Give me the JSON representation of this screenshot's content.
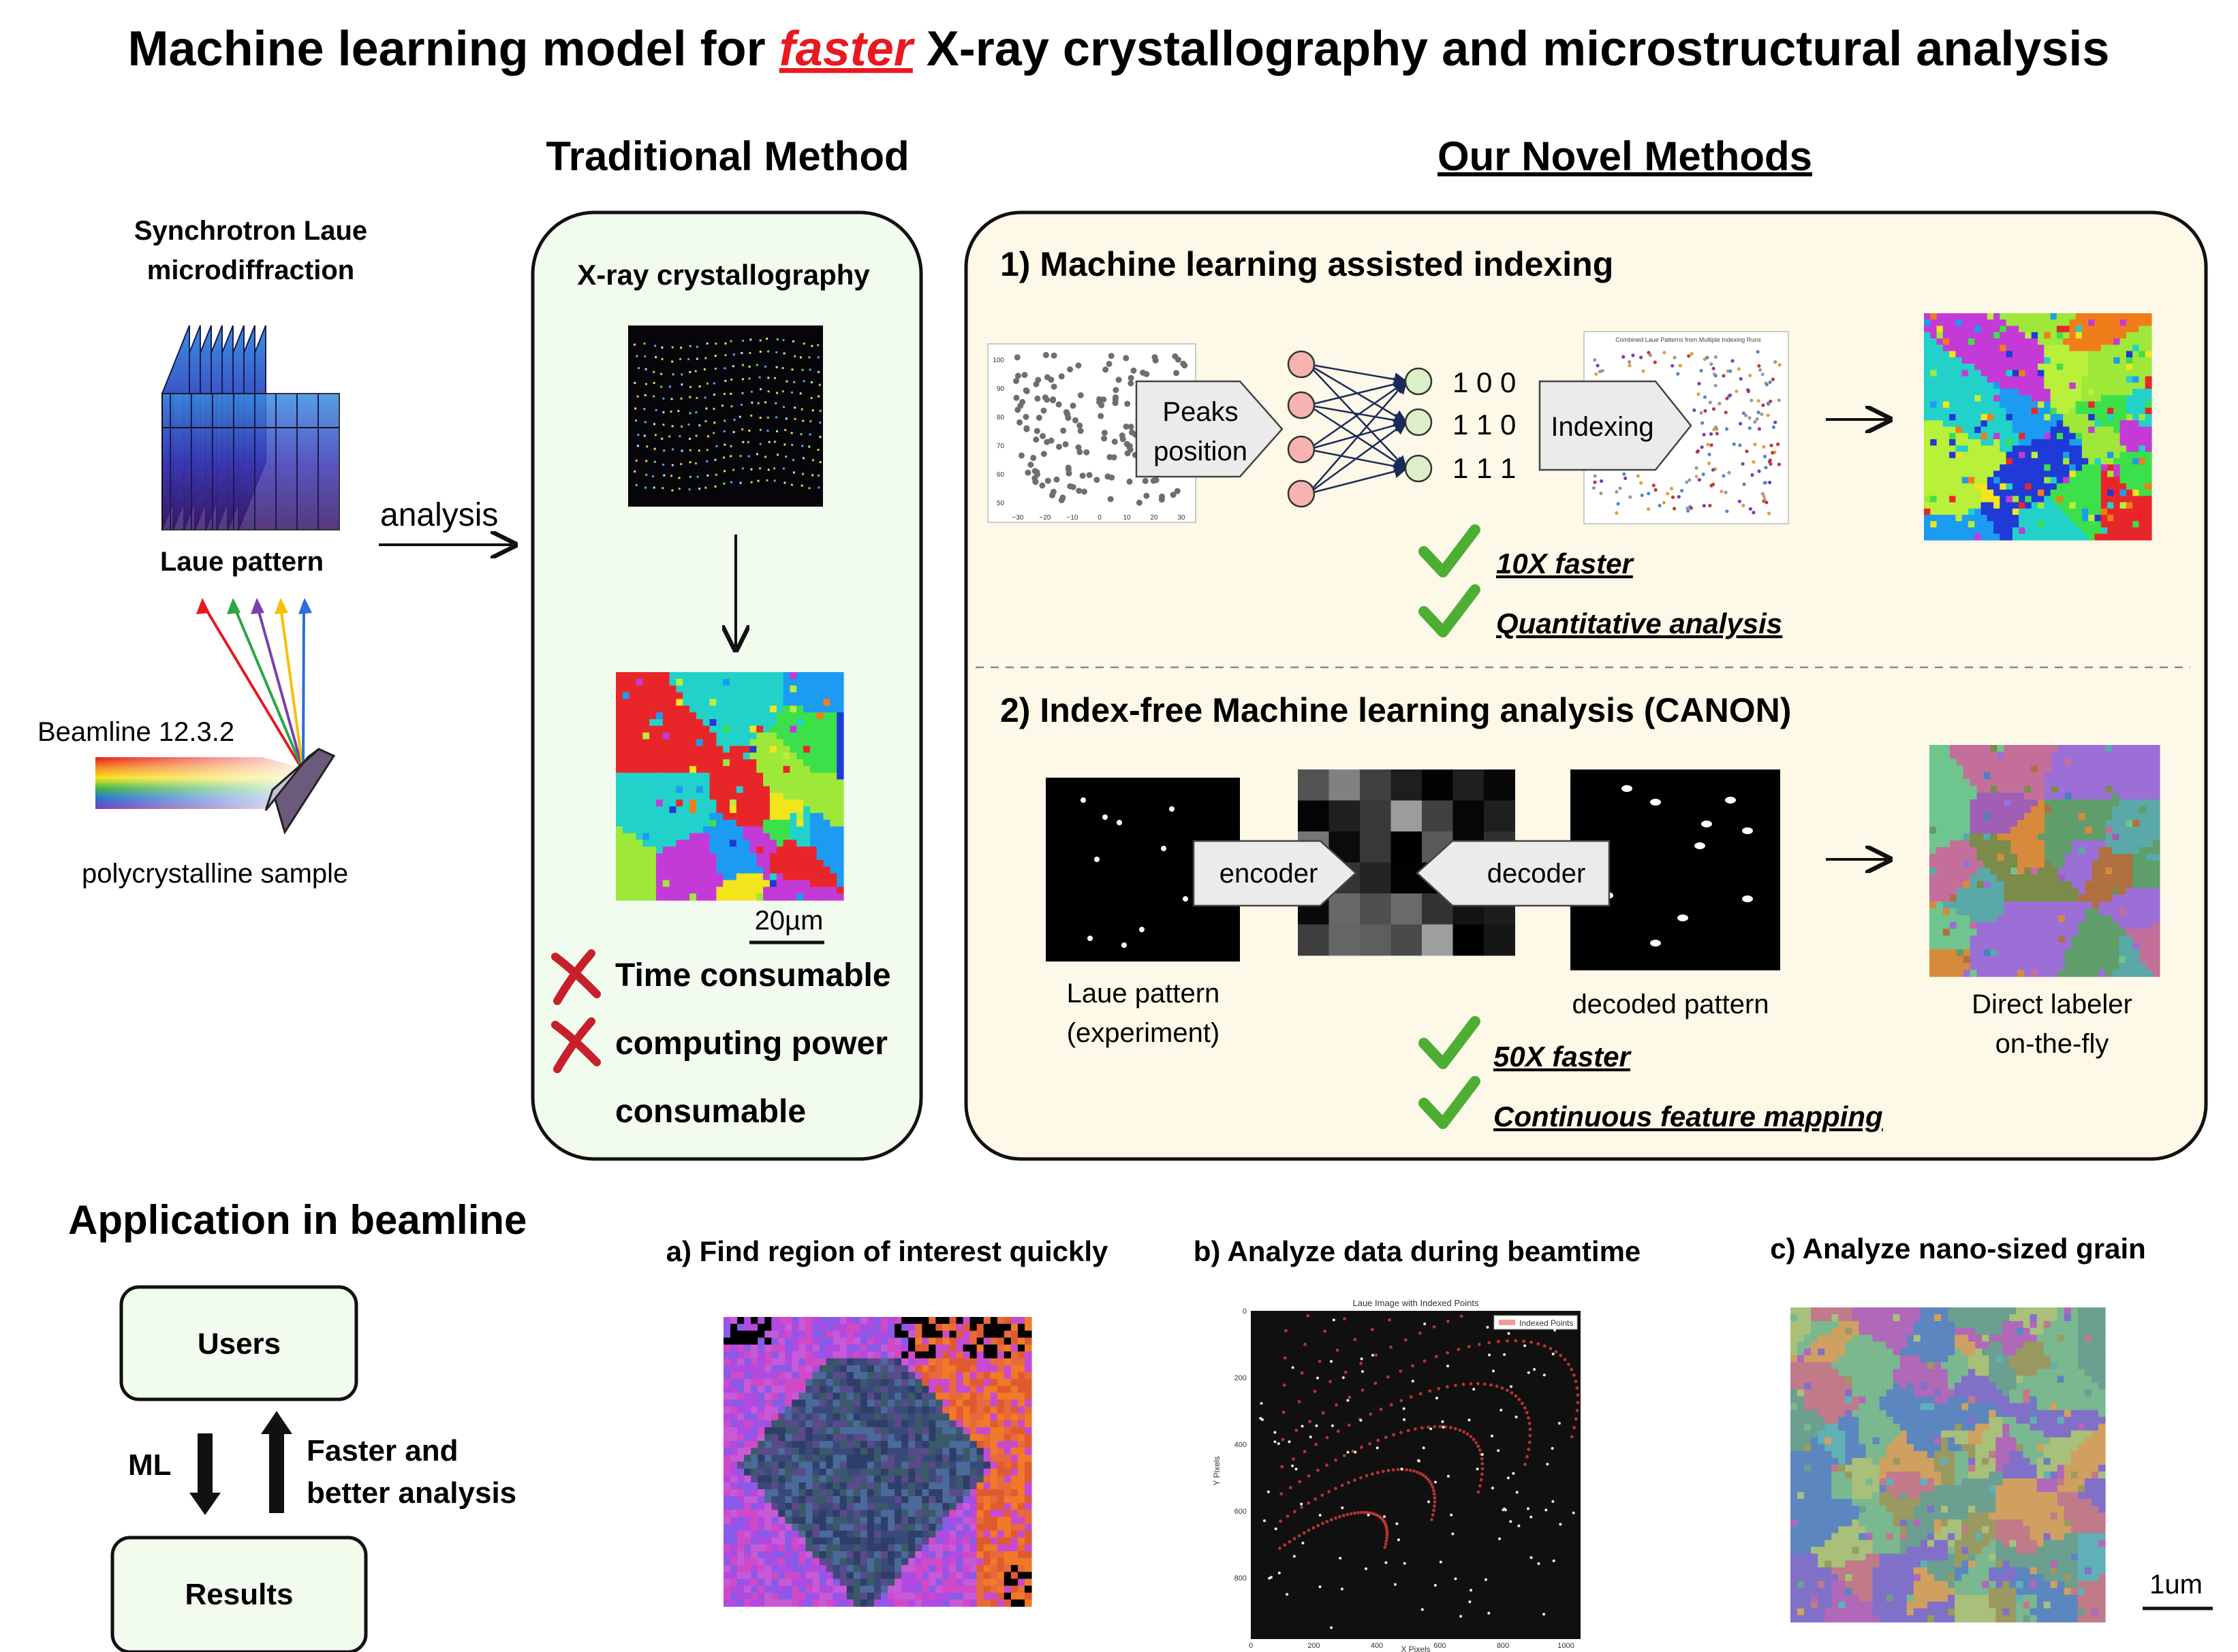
{
  "title": {
    "before": "Machine learning model for ",
    "highlight": "faster",
    "after": " X-ray crystallography and microstructural analysis",
    "highlight_color": "#e8191f"
  },
  "left": {
    "heading_line1": "Synchrotron Laue",
    "heading_line2": "microdiffraction",
    "laue_label": "Laue pattern",
    "beamline": "Beamline 12.3.2",
    "sample": "polycrystalline sample",
    "analysis": "analysis",
    "ray_colors": [
      "#e8191f",
      "#27a844",
      "#7b3fb0",
      "#f2c200",
      "#2a6fd6"
    ]
  },
  "traditional": {
    "header": "Traditional Method",
    "box_title": "X-ray crystallography",
    "scale_bar": "20µm",
    "cons": [
      "Time consumable",
      "computing power",
      "consumable"
    ],
    "box_fill": "#f1fbee"
  },
  "novel": {
    "header": "Our Novel Methods",
    "box_fill": "#fdf8e7",
    "method1": {
      "title": "1) Machine learning assisted indexing",
      "peaks_line1": "Peaks",
      "peaks_line2": "position",
      "outputs": [
        "1 0 0",
        "1 1 0",
        "1 1 1"
      ],
      "indexing": "Indexing",
      "plot_title": "Combined Laue Patterns from Multiple Indexing Runs",
      "scatter_ticks_x": [
        "−30",
        "−20",
        "−10",
        "0",
        "10",
        "20",
        "30"
      ],
      "scatter_ticks_y": [
        "100",
        "90",
        "80",
        "70",
        "60",
        "50"
      ],
      "benefits": [
        "10X faster",
        "Quantitative analysis"
      ]
    },
    "method2": {
      "title": "2) Index-free Machine learning analysis (CANON)",
      "encoder": "encoder",
      "decoder": "decoder",
      "laue_label_line1": "Laue pattern",
      "laue_label_line2": "(experiment)",
      "decoded_label": "decoded pattern",
      "labeler_line1": "Direct labeler",
      "labeler_line2": "on-the-fly",
      "benefits": [
        "50X faster",
        "Continuous feature mapping"
      ]
    },
    "check_color": "#4caf33",
    "cross_color": "#c8202a"
  },
  "application": {
    "header": "Application in beamline",
    "users": "Users",
    "results": "Results",
    "ml": "ML",
    "faster_line1": "Faster and",
    "faster_line2": "better analysis",
    "a_title": "a) Find region of interest quickly",
    "b_title": "b) Analyze data during beamtime",
    "c_title": "c) Analyze nano-sized grain",
    "b_plot": {
      "title": "Laue Image with Indexed Points",
      "legend": "Indexed Points",
      "xlabel": "X Pixels",
      "ylabel": "Y Pixels",
      "xticks": [
        "0",
        "200",
        "400",
        "600",
        "800",
        "1000"
      ],
      "yticks": [
        "0",
        "200",
        "400",
        "600",
        "800"
      ]
    },
    "scale": "1um"
  }
}
